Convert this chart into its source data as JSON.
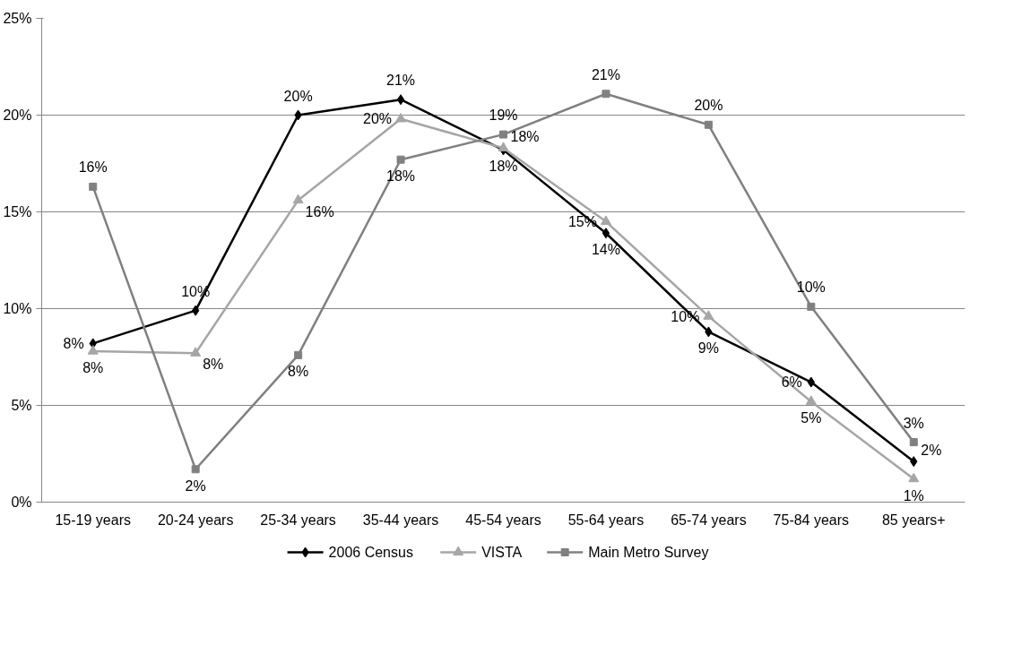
{
  "chart_data": {
    "type": "line",
    "categories": [
      "15-19 years",
      "20-24 years",
      "25-34 years",
      "35-44 years",
      "45-54 years",
      "55-64 years",
      "65-74 years",
      "75-84 years",
      "85 years+"
    ],
    "series": [
      {
        "name": "2006 Census",
        "color": "#000000",
        "marker": "diamond",
        "values": [
          8.2,
          9.9,
          20.0,
          20.8,
          18.2,
          13.9,
          8.8,
          6.2,
          2.1
        ],
        "value_labels": [
          "8%",
          "10%",
          "20%",
          "21%",
          "18%",
          "14%",
          "9%",
          "6%",
          "2%"
        ]
      },
      {
        "name": "VISTA",
        "color": "#a6a6a6",
        "marker": "triangle",
        "values": [
          7.8,
          7.7,
          15.6,
          19.8,
          18.3,
          14.5,
          9.6,
          5.2,
          1.2
        ],
        "value_labels": [
          "8%",
          "8%",
          "16%",
          "20%",
          "18%",
          "15%",
          "10%",
          "5%",
          "1%"
        ]
      },
      {
        "name": "Main Metro Survey",
        "color": "#808080",
        "marker": "square",
        "values": [
          16.3,
          1.7,
          7.6,
          17.7,
          19.0,
          21.1,
          19.5,
          10.1,
          3.1
        ],
        "value_labels": [
          "16%",
          "2%",
          "8%",
          "18%",
          "19%",
          "21%",
          "20%",
          "10%",
          "3%"
        ]
      }
    ],
    "ylim": [
      0,
      25
    ],
    "yticks": [
      {
        "value": 0,
        "label": "0%"
      },
      {
        "value": 5,
        "label": "5%"
      },
      {
        "value": 10,
        "label": "10%"
      },
      {
        "value": 15,
        "label": "15%"
      },
      {
        "value": 20,
        "label": "20%"
      },
      {
        "value": 25,
        "label": "25%"
      }
    ],
    "grid": "y",
    "legend": "bottom",
    "line_style": "solid"
  }
}
